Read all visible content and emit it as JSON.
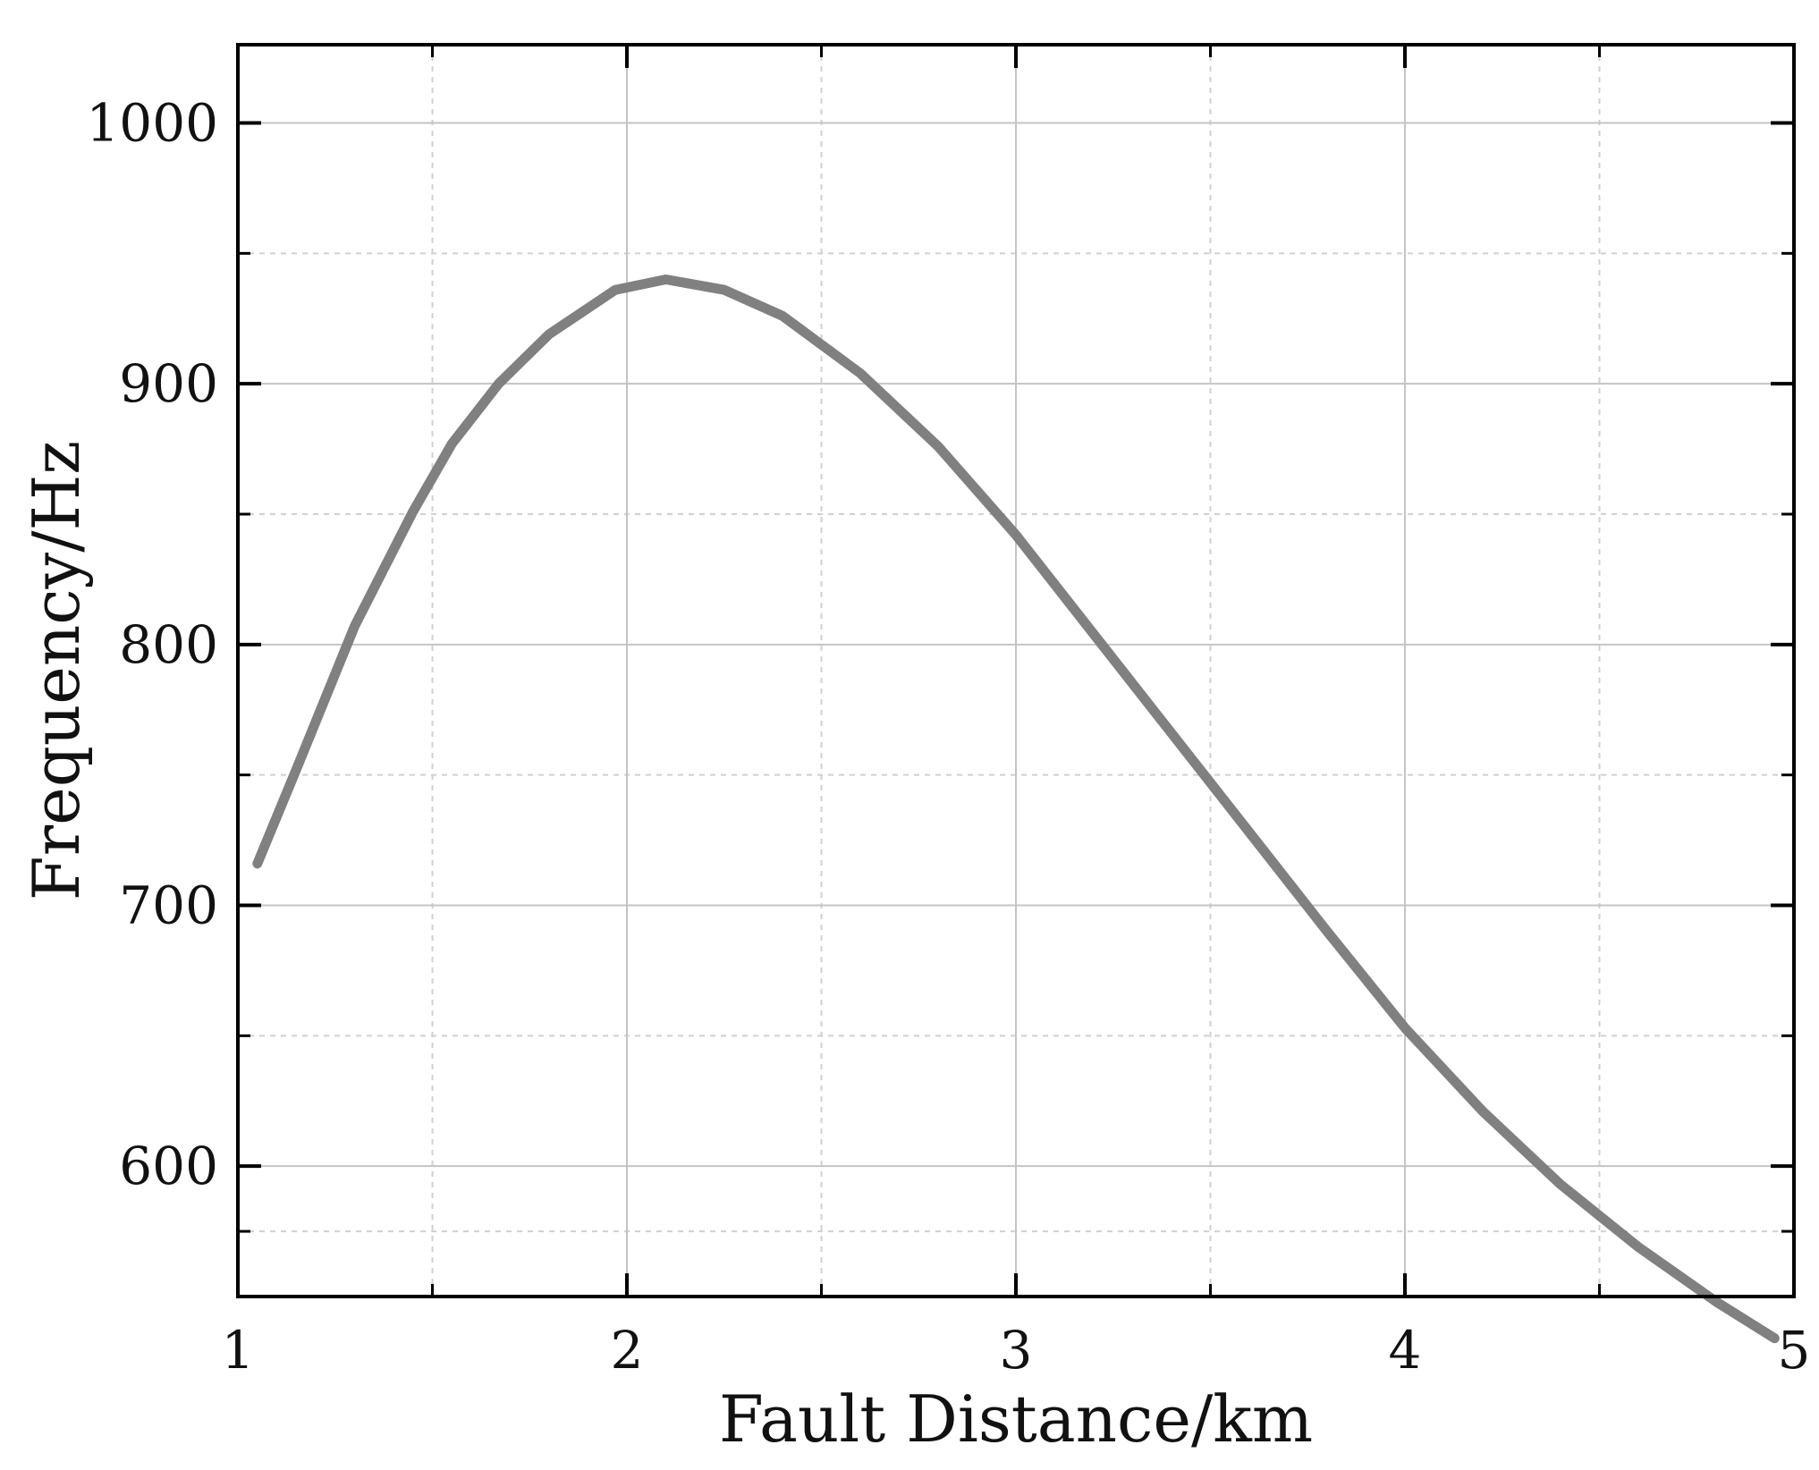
{
  "chart_data": {
    "type": "line",
    "title": "",
    "xlabel": "Fault Distance/km",
    "ylabel": "Frequency/Hz",
    "xlim": [
      1,
      5
    ],
    "ylim": [
      550,
      1030
    ],
    "x_ticks": [
      1,
      2,
      3,
      4,
      5
    ],
    "y_ticks": [
      600,
      700,
      800,
      900,
      1000
    ],
    "x_minor_ticks": [
      1.5,
      2.5,
      3.5,
      4.5
    ],
    "y_minor_ticks": [
      575,
      650,
      750,
      850,
      950
    ],
    "grid": true,
    "legend": "none",
    "line_color": "#808080",
    "series": [
      {
        "x": [
          1.05,
          1.15,
          1.3,
          1.45,
          1.55,
          1.67,
          1.8,
          1.97,
          2.1,
          2.25,
          2.4,
          2.6,
          2.8,
          3.0,
          3.2,
          3.4,
          3.6,
          3.8,
          4.0,
          4.2,
          4.4,
          4.6,
          4.8,
          4.95
        ],
        "y": [
          716,
          752,
          807,
          851,
          877,
          900,
          919,
          936,
          940,
          936,
          926,
          904,
          876,
          842,
          804,
          766,
          728,
          690,
          653,
          621,
          593,
          569,
          548,
          534
        ]
      }
    ]
  }
}
